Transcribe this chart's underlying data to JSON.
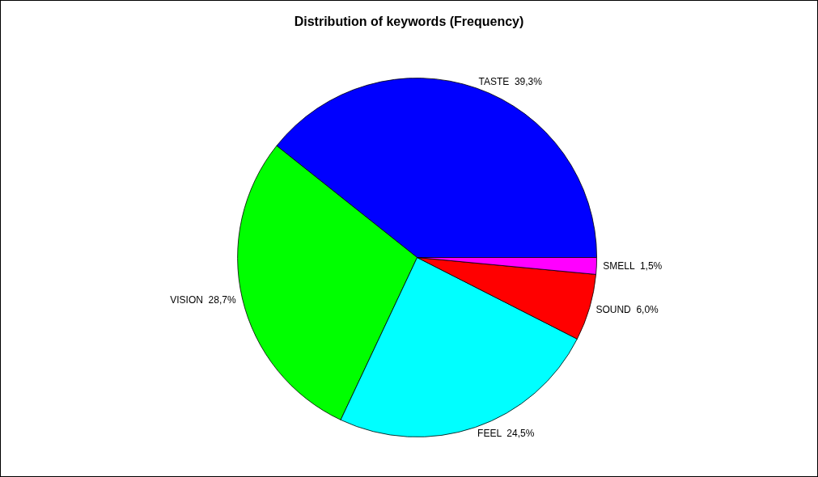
{
  "chart_data": {
    "type": "pie",
    "title": "Distribution of keywords (Frequency)",
    "categories": [
      "TASTE",
      "VISION",
      "FEEL",
      "SOUND",
      "SMELL"
    ],
    "values": [
      39.3,
      28.7,
      24.5,
      6.0,
      1.5
    ],
    "value_labels": [
      "39,3%",
      "28,7%",
      "24,5%",
      "6,0%",
      "1,5%"
    ],
    "colors": [
      "#0000ff",
      "#00ff00",
      "#00ffff",
      "#ff0000",
      "#ff00ff"
    ],
    "legend": false
  }
}
